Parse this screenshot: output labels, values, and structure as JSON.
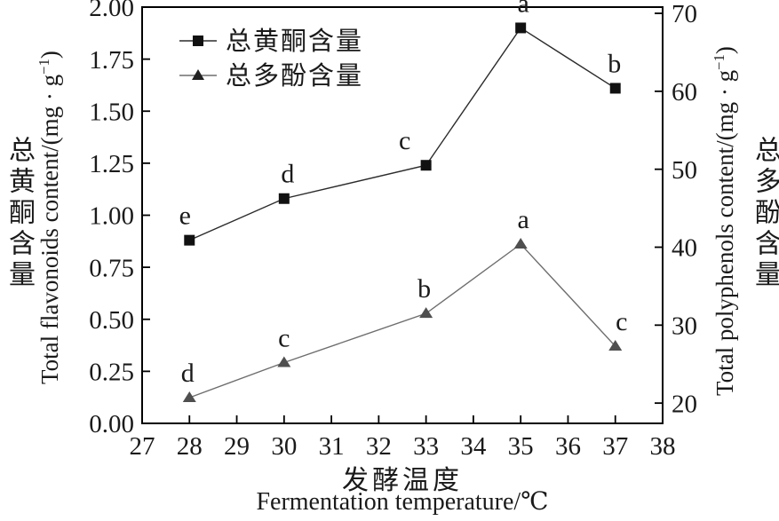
{
  "colors": {
    "background": "#ffffff",
    "text": "#1a1a1a",
    "frame": "#000000",
    "flavonoids_marker": "#111111",
    "flavonoids_line": "#2b2b2b",
    "polyphenols_marker": "#4f4f4f",
    "polyphenols_line": "#6e6e6e"
  },
  "axes": {
    "left": {
      "title_zh": "总黄酮含量",
      "title_en_pre": "Total flavonoids content/(mg · g",
      "title_en_sup": "−1",
      "title_en_post": ")",
      "tick_labels": [
        "0.00",
        "0.25",
        "0.50",
        "0.75",
        "1.00",
        "1.25",
        "1.50",
        "1.75",
        "2.00"
      ]
    },
    "right": {
      "title_en_pre": "Total polyphenols content/(mg · g",
      "title_en_sup": "−1",
      "title_en_post": ")",
      "title_zh": "总多酚含量",
      "tick_labels": [
        "20",
        "30",
        "40",
        "50",
        "60",
        "70"
      ]
    },
    "x": {
      "title_zh": "发酵温度",
      "title_en": "Fermentation temperature/℃",
      "tick_labels": [
        "27",
        "28",
        "29",
        "30",
        "31",
        "32",
        "33",
        "34",
        "35",
        "36",
        "37",
        "38"
      ]
    }
  },
  "legend": {
    "items": [
      {
        "label": "总黄酮含量",
        "marker": "square"
      },
      {
        "label": "总多酚含量",
        "marker": "triangle"
      }
    ]
  },
  "chart_data": {
    "type": "line",
    "title": "",
    "x": [
      28,
      30,
      33,
      35,
      37
    ],
    "x_axis": {
      "min": 27,
      "max": 38,
      "tick_values": [
        27,
        28,
        29,
        30,
        31,
        32,
        33,
        34,
        35,
        36,
        37,
        38
      ],
      "label": "发酵温度 Fermentation temperature/℃"
    },
    "left_axis": {
      "ylim": [
        0,
        2.0
      ],
      "tick_values": [
        0,
        0.25,
        0.5,
        0.75,
        1.0,
        1.25,
        1.5,
        1.75,
        2.0
      ],
      "label": "总黄酮含量 Total flavonoids content/(mg·g⁻¹)"
    },
    "right_axis": {
      "ylim": [
        17.4,
        70.8
      ],
      "tick_values": [
        20,
        30,
        40,
        50,
        60,
        70
      ],
      "label": "Total polyphenols content/(mg·g⁻¹) 总多酚含量"
    },
    "grid": false,
    "legend_position": "upper-left-inside",
    "series": [
      {
        "key": "flavonoids",
        "name": "总黄酮含量",
        "axis": "left",
        "marker": "square",
        "marker_color": "#111111",
        "line_color": "#2b2b2b",
        "values": [
          0.88,
          1.08,
          1.24,
          1.9,
          1.61
        ],
        "point_labels": [
          "e",
          "d",
          "c",
          "a",
          "b"
        ],
        "label_dx": [
          -5,
          4,
          -24,
          3,
          -1
        ]
      },
      {
        "key": "polyphenols",
        "name": "总多酚含量",
        "axis": "right",
        "marker": "triangle",
        "marker_color": "#4f4f4f",
        "line_color": "#6e6e6e",
        "values": [
          20.7,
          25.2,
          31.5,
          40.4,
          27.3
        ],
        "point_labels": [
          "d",
          "c",
          "b",
          "a",
          "c"
        ],
        "label_dx": [
          -2,
          0,
          -2,
          3,
          7
        ]
      }
    ]
  }
}
